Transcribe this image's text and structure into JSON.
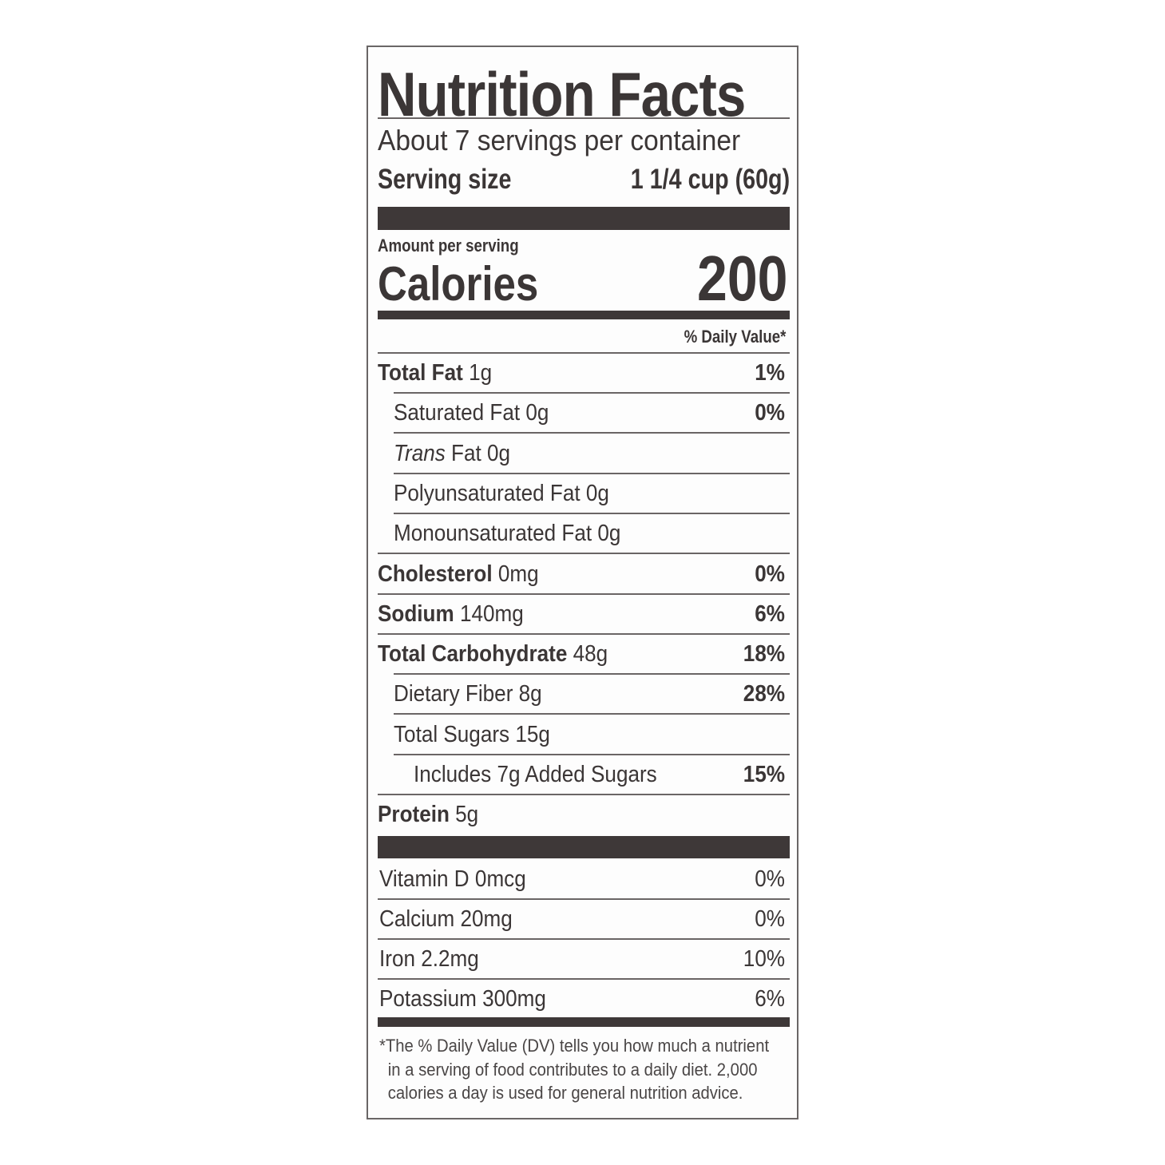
{
  "title": "Nutrition Facts",
  "servings_per_container": "About 7 servings per container",
  "serving_size": {
    "label": "Serving size",
    "value": "1 1/4 cup (60g)"
  },
  "amount_per_serving": "Amount per serving",
  "calories": {
    "label": "Calories",
    "value": "200"
  },
  "daily_value_header": "% Daily Value*",
  "nutrients": [
    {
      "name": "Total Fat",
      "amount": "1g",
      "dv": "1%",
      "level": 0,
      "bold": true
    },
    {
      "name": "Saturated Fat",
      "amount": "0g",
      "dv": "0%",
      "level": 1,
      "bold": false
    },
    {
      "name": "Trans",
      "name_suffix": "Fat",
      "amount": "0g",
      "dv": "",
      "level": 1,
      "bold": false,
      "italic": true
    },
    {
      "name": "Polyunsaturated Fat",
      "amount": "0g",
      "dv": "",
      "level": 1,
      "bold": false
    },
    {
      "name": "Monounsaturated Fat",
      "amount": "0g",
      "dv": "",
      "level": 1,
      "bold": false
    },
    {
      "name": "Cholesterol",
      "amount": "0mg",
      "dv": "0%",
      "level": 0,
      "bold": true
    },
    {
      "name": "Sodium",
      "amount": "140mg",
      "dv": "6%",
      "level": 0,
      "bold": true
    },
    {
      "name": "Total Carbohydrate",
      "amount": "48g",
      "dv": "18%",
      "level": 0,
      "bold": true
    },
    {
      "name": "Dietary Fiber",
      "amount": "8g",
      "dv": "28%",
      "level": 1,
      "bold": false
    },
    {
      "name": "Total Sugars",
      "amount": "15g",
      "dv": "",
      "level": 1,
      "bold": false
    },
    {
      "name": "Includes 7g Added Sugars",
      "amount": "",
      "dv": "15%",
      "level": 2,
      "bold": false
    },
    {
      "name": "Protein",
      "amount": "5g",
      "dv": "",
      "level": 0,
      "bold": true
    }
  ],
  "vitamins": [
    {
      "name": "Vitamin D",
      "amount": "0mcg",
      "dv": "0%"
    },
    {
      "name": "Calcium",
      "amount": "20mg",
      "dv": "0%"
    },
    {
      "name": "Iron",
      "amount": "2.2mg",
      "dv": "10%"
    },
    {
      "name": "Potassium",
      "amount": "300mg",
      "dv": "6%"
    }
  ],
  "footnote": [
    "*The % Daily Value (DV) tells you how much a nutrient",
    "in a serving of food contributes to a daily diet. 2,000",
    "calories a day is used for general nutrition advice."
  ],
  "colors": {
    "ink": "#3b3636",
    "border": "#6a6666"
  }
}
